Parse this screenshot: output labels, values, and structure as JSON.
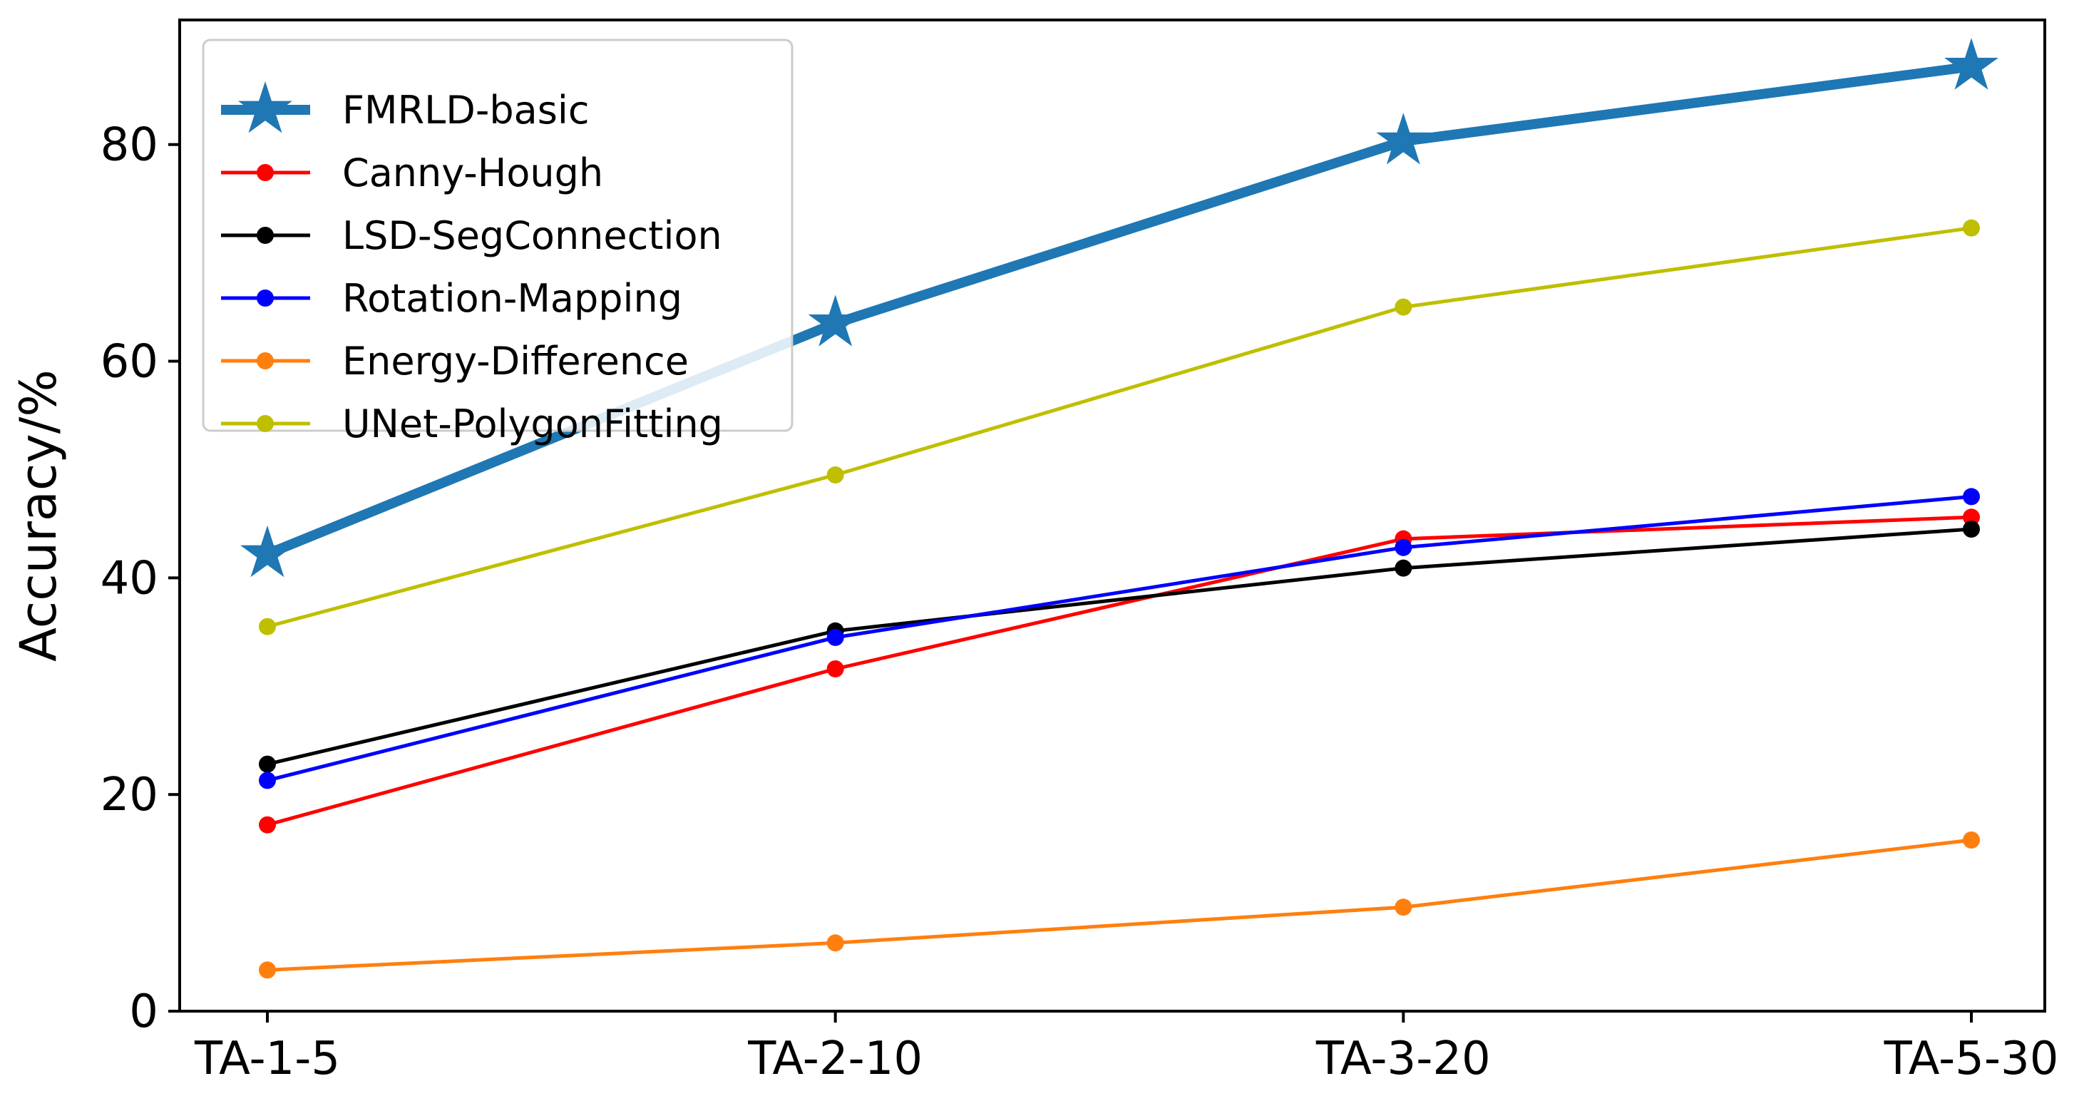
{
  "chart_data": {
    "type": "line",
    "title": "",
    "xlabel": "",
    "ylabel": "Accuracy/%",
    "categories": [
      "TA-1-5",
      "TA-2-10",
      "TA-3-20",
      "TA-5-30"
    ],
    "ylim": [
      0,
      91.5
    ],
    "yticks": [
      0,
      20,
      40,
      60,
      80
    ],
    "yticks_text": [
      "0",
      "20",
      "40",
      "60",
      "80"
    ],
    "grid": false,
    "legend_position": "top-left",
    "series": [
      {
        "name": "FMRLD-basic",
        "color": "#1f77b4",
        "marker": "star",
        "values": [
          42.2,
          63.5,
          80.3,
          87.2
        ]
      },
      {
        "name": "Canny-Hough",
        "color": "#ff0000",
        "marker": "circle",
        "values": [
          17.2,
          31.6,
          43.6,
          45.6
        ]
      },
      {
        "name": "LSD-SegConnection",
        "color": "#000000",
        "marker": "circle",
        "values": [
          22.8,
          35.1,
          40.9,
          44.5
        ]
      },
      {
        "name": "Rotation-Mapping",
        "color": "#0000ff",
        "marker": "circle",
        "values": [
          21.3,
          34.5,
          42.8,
          47.5
        ]
      },
      {
        "name": "Energy-Difference",
        "color": "#ff7f0e",
        "marker": "circle",
        "values": [
          3.8,
          6.3,
          9.6,
          15.8
        ]
      },
      {
        "name": "UNet-PolygonFitting",
        "color": "#bfbf00",
        "marker": "circle",
        "values": [
          35.5,
          49.5,
          65.0,
          72.3
        ]
      }
    ]
  }
}
